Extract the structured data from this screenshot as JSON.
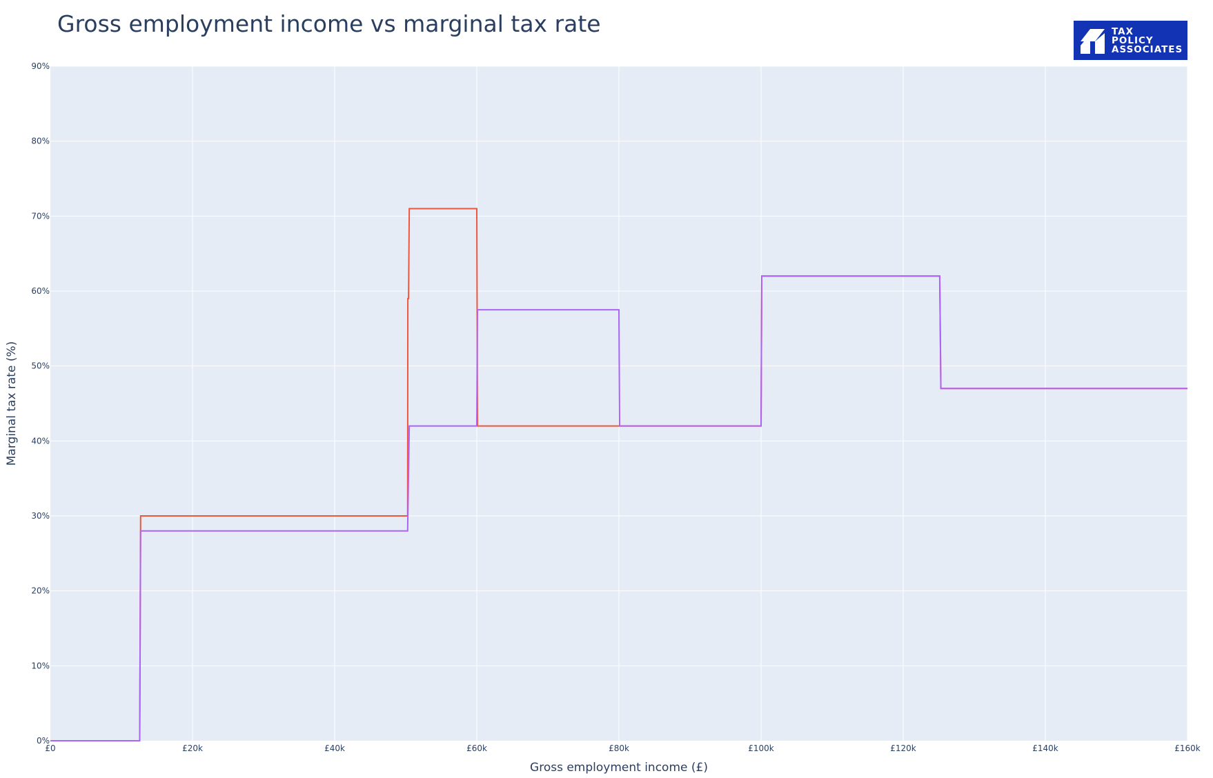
{
  "chart_data": {
    "type": "line",
    "title": "Gross employment income vs marginal tax rate",
    "xlabel": "Gross employment income (£)",
    "ylabel": "Marginal tax rate (%)",
    "xlim": [
      0,
      160000
    ],
    "ylim": [
      0,
      90
    ],
    "x_ticks": [
      {
        "value": 0,
        "label": "£0"
      },
      {
        "value": 20000,
        "label": "£20k"
      },
      {
        "value": 40000,
        "label": "£40k"
      },
      {
        "value": 60000,
        "label": "£60k"
      },
      {
        "value": 80000,
        "label": "£80k"
      },
      {
        "value": 100000,
        "label": "£100k"
      },
      {
        "value": 120000,
        "label": "£120k"
      },
      {
        "value": 140000,
        "label": "£140k"
      },
      {
        "value": 160000,
        "label": "£160k"
      }
    ],
    "y_ticks": [
      {
        "value": 0,
        "label": "0%"
      },
      {
        "value": 10,
        "label": "10%"
      },
      {
        "value": 20,
        "label": "20%"
      },
      {
        "value": 30,
        "label": "30%"
      },
      {
        "value": 40,
        "label": "40%"
      },
      {
        "value": 50,
        "label": "50%"
      },
      {
        "value": 60,
        "label": "60%"
      },
      {
        "value": 70,
        "label": "70%"
      },
      {
        "value": 80,
        "label": "80%"
      },
      {
        "value": 90,
        "label": "90%"
      }
    ],
    "grid": true,
    "legend": "none",
    "background_color": "#e5ecf6",
    "series": [
      {
        "color": "#ef553b",
        "points": [
          [
            0,
            0
          ],
          [
            12570,
            0
          ],
          [
            12700,
            30
          ],
          [
            50270,
            30
          ],
          [
            50300,
            59
          ],
          [
            50400,
            59
          ],
          [
            50500,
            71
          ],
          [
            60000,
            71
          ],
          [
            60100,
            42
          ],
          [
            100000,
            42
          ],
          [
            100100,
            62
          ],
          [
            125140,
            62
          ],
          [
            125300,
            47
          ],
          [
            160000,
            47
          ]
        ]
      },
      {
        "color": "#ab63fa",
        "points": [
          [
            0,
            0
          ],
          [
            12570,
            0
          ],
          [
            12700,
            28
          ],
          [
            50270,
            28
          ],
          [
            50500,
            42
          ],
          [
            60000,
            42
          ],
          [
            60100,
            57.5
          ],
          [
            80000,
            57.5
          ],
          [
            80100,
            42
          ],
          [
            100000,
            42
          ],
          [
            100100,
            62
          ],
          [
            125140,
            62
          ],
          [
            125300,
            47
          ],
          [
            160000,
            47
          ]
        ]
      }
    ]
  },
  "logo": {
    "line1": "TAX",
    "line2": "POLICY",
    "line3": "ASSOCIATES",
    "background": "#1133b4"
  }
}
